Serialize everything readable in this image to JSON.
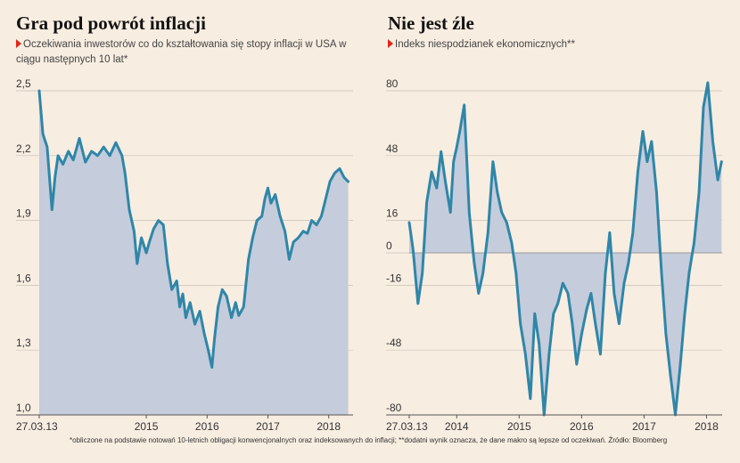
{
  "footnote": "*obliczone na podstawie notowań 10-letnich obligacji konwencjonalnych oraz indeksowanych do inflacji; **dodatni wynik oznacza, że dane makro są lepsze od oczekiwań. Źródło: Bloomberg",
  "colors": {
    "line": "#2f86a8",
    "area": "#c5ccdb",
    "background": "#f8ede1",
    "grid": "#c9c1b8",
    "marker": "#e0261b"
  },
  "chart_data": [
    {
      "type": "area",
      "title": "Gra pod powrót inflacji",
      "subtitle": "Oczekiwania inwestorów co do kształtowania się stopy inflacji w USA w ciągu następnych 10 lat*",
      "x_tick_labels": [
        "27.03.13",
        "2015",
        "2016",
        "2017",
        "2018"
      ],
      "x_ticks": [
        2013.24,
        2015.0,
        2016.0,
        2017.0,
        2018.0
      ],
      "xlim": [
        2013.24,
        2018.4
      ],
      "y_ticks": [
        1.0,
        1.3,
        1.6,
        1.9,
        2.2,
        2.5
      ],
      "y_tick_labels": [
        "1,0",
        "1,3",
        "1,6",
        "1,9",
        "2,2",
        "2,5"
      ],
      "ylim": [
        1.0,
        2.5
      ],
      "grid": true,
      "baseline": 1.0,
      "x": [
        2013.24,
        2013.3,
        2013.37,
        2013.45,
        2013.5,
        2013.55,
        2013.63,
        2013.72,
        2013.8,
        2013.9,
        2014.0,
        2014.1,
        2014.2,
        2014.3,
        2014.4,
        2014.5,
        2014.6,
        2014.65,
        2014.72,
        2014.8,
        2014.85,
        2014.92,
        2015.0,
        2015.05,
        2015.12,
        2015.2,
        2015.28,
        2015.35,
        2015.42,
        2015.5,
        2015.55,
        2015.6,
        2015.65,
        2015.72,
        2015.8,
        2015.88,
        2015.95,
        2016.02,
        2016.08,
        2016.12,
        2016.18,
        2016.25,
        2016.32,
        2016.4,
        2016.47,
        2016.52,
        2016.6,
        2016.68,
        2016.75,
        2016.82,
        2016.9,
        2016.95,
        2017.0,
        2017.05,
        2017.12,
        2017.2,
        2017.28,
        2017.35,
        2017.42,
        2017.5,
        2017.58,
        2017.65,
        2017.72,
        2017.8,
        2017.88,
        2017.95,
        2018.02,
        2018.1,
        2018.18,
        2018.25,
        2018.32
      ],
      "values": [
        2.5,
        2.3,
        2.24,
        1.95,
        2.1,
        2.2,
        2.16,
        2.22,
        2.18,
        2.28,
        2.17,
        2.22,
        2.2,
        2.24,
        2.2,
        2.26,
        2.2,
        2.12,
        1.95,
        1.85,
        1.7,
        1.82,
        1.75,
        1.8,
        1.86,
        1.9,
        1.88,
        1.7,
        1.58,
        1.62,
        1.5,
        1.56,
        1.45,
        1.52,
        1.42,
        1.48,
        1.38,
        1.3,
        1.22,
        1.35,
        1.5,
        1.58,
        1.55,
        1.45,
        1.52,
        1.46,
        1.5,
        1.72,
        1.82,
        1.9,
        1.92,
        2.0,
        2.05,
        1.98,
        2.02,
        1.92,
        1.85,
        1.72,
        1.8,
        1.82,
        1.85,
        1.84,
        1.9,
        1.88,
        1.92,
        2.0,
        2.08,
        2.12,
        2.14,
        2.1,
        2.08
      ]
    },
    {
      "type": "area",
      "title": "Nie jest źle",
      "subtitle": "Indeks niespodzianek ekonomicznych**",
      "x_tick_labels": [
        "27.03.13",
        "2014",
        "2015",
        "2016",
        "2017",
        "2018"
      ],
      "x_ticks": [
        2013.24,
        2014.0,
        2015.0,
        2016.0,
        2017.0,
        2018.0
      ],
      "xlim": [
        2013.24,
        2018.25
      ],
      "y_ticks": [
        -80,
        -48,
        -16,
        0,
        16,
        48,
        80
      ],
      "y_tick_labels": [
        "-80",
        "-48",
        "-16",
        "0",
        "16",
        "48",
        "80"
      ],
      "ylim": [
        -80,
        80
      ],
      "grid": true,
      "baseline": 0,
      "x": [
        2013.24,
        2013.3,
        2013.38,
        2013.45,
        2013.52,
        2013.6,
        2013.68,
        2013.75,
        2013.82,
        2013.9,
        2013.95,
        2014.0,
        2014.05,
        2014.12,
        2014.2,
        2014.28,
        2014.35,
        2014.42,
        2014.5,
        2014.58,
        2014.65,
        2014.72,
        2014.8,
        2014.88,
        2014.95,
        2015.02,
        2015.1,
        2015.18,
        2015.25,
        2015.32,
        2015.4,
        2015.48,
        2015.55,
        2015.62,
        2015.7,
        2015.78,
        2015.85,
        2015.92,
        2016.0,
        2016.08,
        2016.15,
        2016.22,
        2016.3,
        2016.38,
        2016.45,
        2016.52,
        2016.6,
        2016.68,
        2016.75,
        2016.82,
        2016.9,
        2016.98,
        2017.05,
        2017.12,
        2017.2,
        2017.28,
        2017.35,
        2017.42,
        2017.5,
        2017.58,
        2017.65,
        2017.72,
        2017.8,
        2017.88,
        2017.95,
        2018.02,
        2018.1,
        2018.18,
        2018.24
      ],
      "values": [
        15,
        2,
        -25,
        -10,
        25,
        40,
        32,
        50,
        35,
        20,
        45,
        52,
        60,
        73,
        20,
        -5,
        -20,
        -10,
        10,
        45,
        30,
        20,
        15,
        5,
        -10,
        -35,
        -50,
        -72,
        -30,
        -45,
        -80,
        -50,
        -30,
        -25,
        -15,
        -20,
        -35,
        -55,
        -40,
        -28,
        -20,
        -35,
        -50,
        -10,
        10,
        -20,
        -35,
        -15,
        -5,
        10,
        40,
        60,
        45,
        55,
        30,
        -10,
        -40,
        -60,
        -80,
        -55,
        -30,
        -10,
        5,
        30,
        72,
        84,
        55,
        36,
        45
      ]
    }
  ]
}
